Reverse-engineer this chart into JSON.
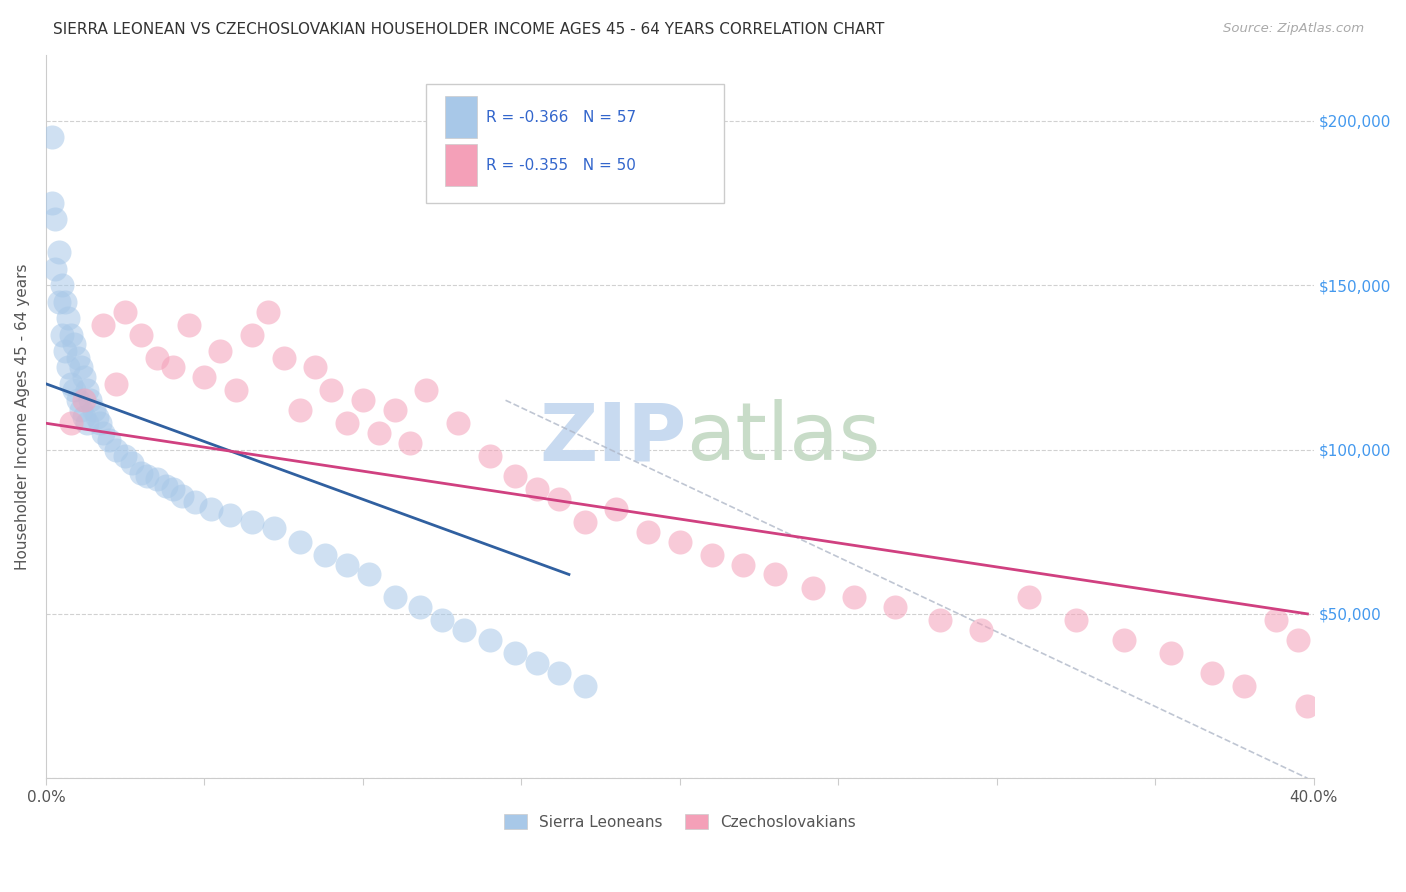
{
  "title": "SIERRA LEONEAN VS CZECHOSLOVAKIAN HOUSEHOLDER INCOME AGES 45 - 64 YEARS CORRELATION CHART",
  "source": "Source: ZipAtlas.com",
  "ylabel": "Householder Income Ages 45 - 64 years",
  "xlim": [
    0.0,
    0.4
  ],
  "ylim": [
    0,
    220000
  ],
  "color_blue": "#a8c8e8",
  "color_pink": "#f4a0b8",
  "color_line_blue": "#3060a0",
  "color_line_pink": "#d04080",
  "color_line_dash": "#b0b8c8",
  "sierra_x": [
    0.002,
    0.002,
    0.003,
    0.003,
    0.004,
    0.004,
    0.005,
    0.005,
    0.006,
    0.006,
    0.007,
    0.007,
    0.008,
    0.008,
    0.009,
    0.009,
    0.01,
    0.01,
    0.011,
    0.011,
    0.012,
    0.012,
    0.013,
    0.013,
    0.014,
    0.015,
    0.016,
    0.017,
    0.018,
    0.02,
    0.022,
    0.025,
    0.027,
    0.03,
    0.032,
    0.035,
    0.038,
    0.04,
    0.043,
    0.047,
    0.052,
    0.058,
    0.065,
    0.072,
    0.08,
    0.088,
    0.095,
    0.102,
    0.11,
    0.118,
    0.125,
    0.132,
    0.14,
    0.148,
    0.155,
    0.162,
    0.17
  ],
  "sierra_y": [
    195000,
    175000,
    170000,
    155000,
    160000,
    145000,
    150000,
    135000,
    145000,
    130000,
    140000,
    125000,
    135000,
    120000,
    132000,
    118000,
    128000,
    115000,
    125000,
    112000,
    122000,
    110000,
    118000,
    108000,
    115000,
    112000,
    110000,
    108000,
    105000,
    103000,
    100000,
    98000,
    96000,
    93000,
    92000,
    91000,
    89000,
    88000,
    86000,
    84000,
    82000,
    80000,
    78000,
    76000,
    72000,
    68000,
    65000,
    62000,
    55000,
    52000,
    48000,
    45000,
    42000,
    38000,
    35000,
    32000,
    28000
  ],
  "czech_x": [
    0.008,
    0.012,
    0.018,
    0.022,
    0.025,
    0.03,
    0.035,
    0.04,
    0.045,
    0.05,
    0.055,
    0.06,
    0.065,
    0.07,
    0.075,
    0.08,
    0.085,
    0.09,
    0.095,
    0.1,
    0.105,
    0.11,
    0.115,
    0.12,
    0.13,
    0.14,
    0.148,
    0.155,
    0.162,
    0.17,
    0.18,
    0.19,
    0.2,
    0.21,
    0.22,
    0.23,
    0.242,
    0.255,
    0.268,
    0.282,
    0.295,
    0.31,
    0.325,
    0.34,
    0.355,
    0.368,
    0.378,
    0.388,
    0.395,
    0.398
  ],
  "czech_y": [
    108000,
    115000,
    138000,
    120000,
    142000,
    135000,
    128000,
    125000,
    138000,
    122000,
    130000,
    118000,
    135000,
    142000,
    128000,
    112000,
    125000,
    118000,
    108000,
    115000,
    105000,
    112000,
    102000,
    118000,
    108000,
    98000,
    92000,
    88000,
    85000,
    78000,
    82000,
    75000,
    72000,
    68000,
    65000,
    62000,
    58000,
    55000,
    52000,
    48000,
    45000,
    55000,
    48000,
    42000,
    38000,
    32000,
    28000,
    48000,
    42000,
    22000
  ],
  "sierra_line_x": [
    0.0,
    0.165
  ],
  "sierra_line_y": [
    120000,
    62000
  ],
  "czech_line_x": [
    0.0,
    0.398
  ],
  "czech_line_y": [
    108000,
    50000
  ],
  "dash_line_x": [
    0.145,
    0.398
  ],
  "dash_line_y": [
    115000,
    0
  ]
}
